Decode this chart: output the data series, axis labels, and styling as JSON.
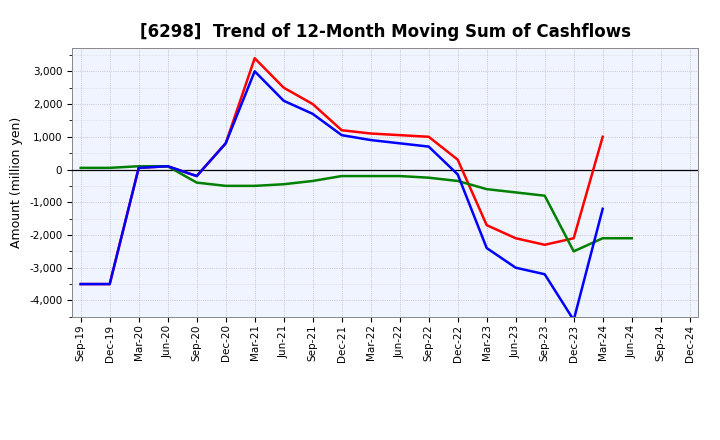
{
  "title": "[6298]  Trend of 12-Month Moving Sum of Cashflows",
  "ylabel": "Amount (million yen)",
  "xlabels": [
    "Sep-19",
    "Dec-19",
    "Mar-20",
    "Jun-20",
    "Sep-20",
    "Dec-20",
    "Mar-21",
    "Jun-21",
    "Sep-21",
    "Dec-21",
    "Mar-22",
    "Jun-22",
    "Sep-22",
    "Dec-22",
    "Mar-23",
    "Jun-23",
    "Sep-23",
    "Dec-23",
    "Mar-24",
    "Jun-24",
    "Sep-24",
    "Dec-24"
  ],
  "operating": [
    -3500,
    -3500,
    50,
    100,
    -200,
    800,
    3400,
    2500,
    2000,
    1200,
    1100,
    1050,
    1000,
    300,
    -1700,
    -2100,
    -2300,
    -2100,
    1000,
    null,
    null,
    null
  ],
  "investing": [
    50,
    50,
    100,
    100,
    -400,
    -500,
    -500,
    -450,
    -350,
    -200,
    -200,
    -200,
    -250,
    -350,
    -600,
    -700,
    -800,
    -2500,
    -2100,
    -2100,
    null,
    null
  ],
  "free": [
    -3500,
    -3500,
    50,
    100,
    -200,
    800,
    3000,
    2100,
    1700,
    1050,
    900,
    800,
    700,
    -150,
    -2400,
    -3000,
    -3200,
    -4600,
    -1200,
    null,
    null,
    null
  ],
  "operating_color": "#FF0000",
  "investing_color": "#008000",
  "free_color": "#0000FF",
  "ylim": [
    -4500,
    3700
  ],
  "yticks": [
    -4000,
    -3000,
    -2000,
    -1000,
    0,
    1000,
    2000,
    3000
  ],
  "background_color": "#FFFFFF",
  "plot_bg_color": "#F0F4FF",
  "grid_major_color": "#AAAAAA",
  "grid_minor_color": "#CCCCCC",
  "title_fontsize": 12,
  "label_fontsize": 9,
  "tick_fontsize": 7.5
}
